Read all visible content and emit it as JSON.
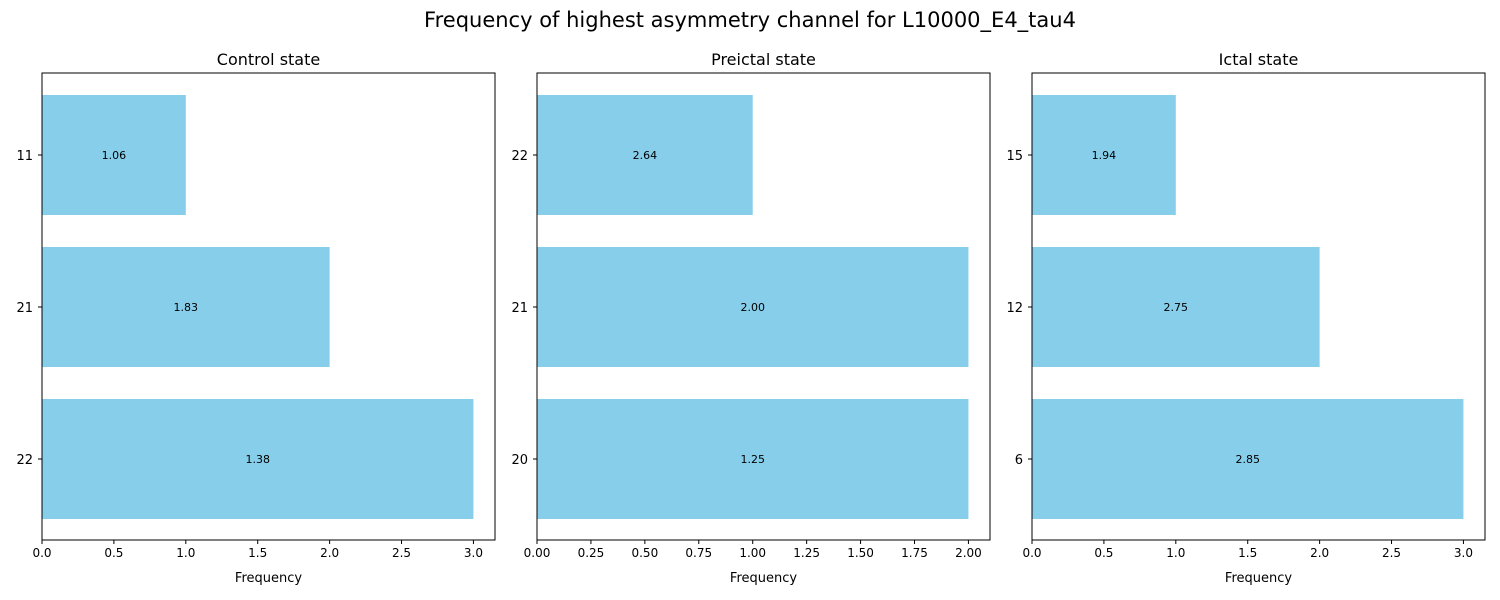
{
  "figure": {
    "title": "Frequency of highest asymmetry channel for L10000_E4_tau4"
  },
  "colors": {
    "bar": "#87CEEB",
    "axis": "#000000"
  },
  "chart_data": [
    {
      "type": "bar",
      "orientation": "horizontal",
      "title": "Control state",
      "xlabel": "Frequency",
      "ylabel": "",
      "categories": [
        "11",
        "21",
        "22"
      ],
      "values": [
        1,
        2,
        3
      ],
      "bar_labels": [
        "1.06",
        "1.83",
        "1.38"
      ],
      "xlim": [
        0,
        3.15
      ],
      "xticks": [
        0,
        0.5,
        1.0,
        1.5,
        2.0,
        2.5,
        3.0
      ],
      "xtick_labels": [
        "0.0",
        "0.5",
        "1.0",
        "1.5",
        "2.0",
        "2.5",
        "3.0"
      ],
      "grid": false,
      "legend": false
    },
    {
      "type": "bar",
      "orientation": "horizontal",
      "title": "Preictal state",
      "xlabel": "Frequency",
      "ylabel": "",
      "categories": [
        "22",
        "21",
        "20"
      ],
      "values": [
        1,
        2,
        2
      ],
      "bar_labels": [
        "2.64",
        "2.00",
        "1.25"
      ],
      "xlim": [
        0,
        2.1
      ],
      "xticks": [
        0,
        0.25,
        0.5,
        0.75,
        1.0,
        1.25,
        1.5,
        1.75,
        2.0
      ],
      "xtick_labels": [
        "0.00",
        "0.25",
        "0.50",
        "0.75",
        "1.00",
        "1.25",
        "1.50",
        "1.75",
        "2.00"
      ],
      "grid": false,
      "legend": false
    },
    {
      "type": "bar",
      "orientation": "horizontal",
      "title": "Ictal state",
      "xlabel": "Frequency",
      "ylabel": "",
      "categories": [
        "15",
        "12",
        "6"
      ],
      "values": [
        1,
        2,
        3
      ],
      "bar_labels": [
        "1.94",
        "2.75",
        "2.85"
      ],
      "xlim": [
        0,
        3.15
      ],
      "xticks": [
        0,
        0.5,
        1.0,
        1.5,
        2.0,
        2.5,
        3.0
      ],
      "xtick_labels": [
        "0.0",
        "0.5",
        "1.0",
        "1.5",
        "2.0",
        "2.5",
        "3.0"
      ],
      "grid": false,
      "legend": false
    }
  ]
}
